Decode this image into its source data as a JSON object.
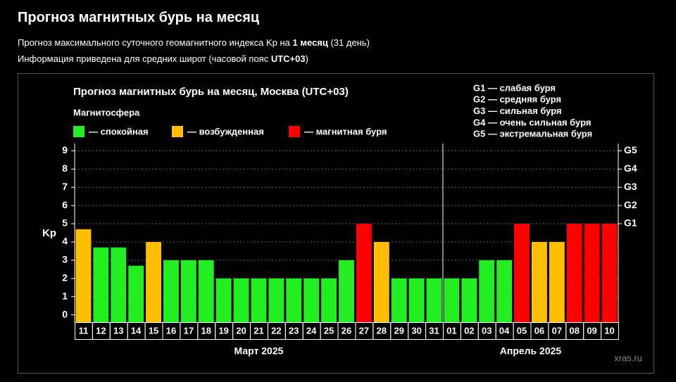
{
  "header": {
    "title": "Прогноз магнитных бурь на месяц",
    "line1": [
      "Прогноз максимального суточного геомагнитного индекса Kp на ",
      "1 месяц",
      " (31 день)"
    ],
    "line2": [
      "Информация приведена для средних широт (часовой пояс ",
      "UTC+03",
      ")"
    ]
  },
  "chart_data": {
    "type": "bar",
    "title": "Прогноз магнитных бурь на месяц, Москва (UTC+03)",
    "legend_title": "Магнитосфера",
    "legend": [
      {
        "label": "— спокойная",
        "color": "#22ee22"
      },
      {
        "label": "— возбужденная",
        "color": "#ffbf00"
      },
      {
        "label": "— магнитная буря",
        "color": "#ff0000"
      }
    ],
    "scale_notes": [
      "G1 — слабая буря",
      "G2 — средняя буря",
      "G3 — сильная буря",
      "G4 — очень сильная буря",
      "G5 — экстремальная буря"
    ],
    "ylabel": "Kp",
    "ylim": [
      -0.4,
      9.4
    ],
    "yticks": [
      0,
      1,
      2,
      3,
      4,
      5,
      6,
      7,
      8,
      9
    ],
    "y2lim": [
      -0.4,
      9.4
    ],
    "y2ticks": [
      {
        "value": 5,
        "label": "G1"
      },
      {
        "value": 6,
        "label": "G2"
      },
      {
        "value": 7,
        "label": "G3"
      },
      {
        "value": 8,
        "label": "G4"
      },
      {
        "value": 9,
        "label": "G5"
      }
    ],
    "grid": true,
    "groups": [
      {
        "label": "Март 2025",
        "categories": [
          "11",
          "12",
          "13",
          "14",
          "15",
          "16",
          "17",
          "18",
          "19",
          "20",
          "21",
          "22",
          "23",
          "24",
          "25",
          "26",
          "27",
          "28",
          "29",
          "30",
          "31"
        ],
        "values": [
          4.7,
          3.7,
          3.7,
          2.7,
          4,
          3,
          3,
          3,
          2,
          2,
          2,
          2,
          2,
          2,
          2,
          3,
          5,
          4,
          2,
          2,
          2
        ],
        "colors": [
          "#ffbf00",
          "#22ee22",
          "#22ee22",
          "#22ee22",
          "#ffbf00",
          "#22ee22",
          "#22ee22",
          "#22ee22",
          "#22ee22",
          "#22ee22",
          "#22ee22",
          "#22ee22",
          "#22ee22",
          "#22ee22",
          "#22ee22",
          "#22ee22",
          "#ff0000",
          "#ffbf00",
          "#22ee22",
          "#22ee22",
          "#22ee22"
        ]
      },
      {
        "label": "Апрель 2025",
        "categories": [
          "01",
          "02",
          "03",
          "04",
          "05",
          "06",
          "07",
          "08",
          "09",
          "10"
        ],
        "values": [
          2,
          2,
          3,
          3,
          5,
          4,
          4,
          5,
          5,
          5
        ],
        "colors": [
          "#22ee22",
          "#22ee22",
          "#22ee22",
          "#22ee22",
          "#ff0000",
          "#ffbf00",
          "#ffbf00",
          "#ff0000",
          "#ff0000",
          "#ff0000"
        ]
      }
    ]
  },
  "watermark": "xras.ru"
}
